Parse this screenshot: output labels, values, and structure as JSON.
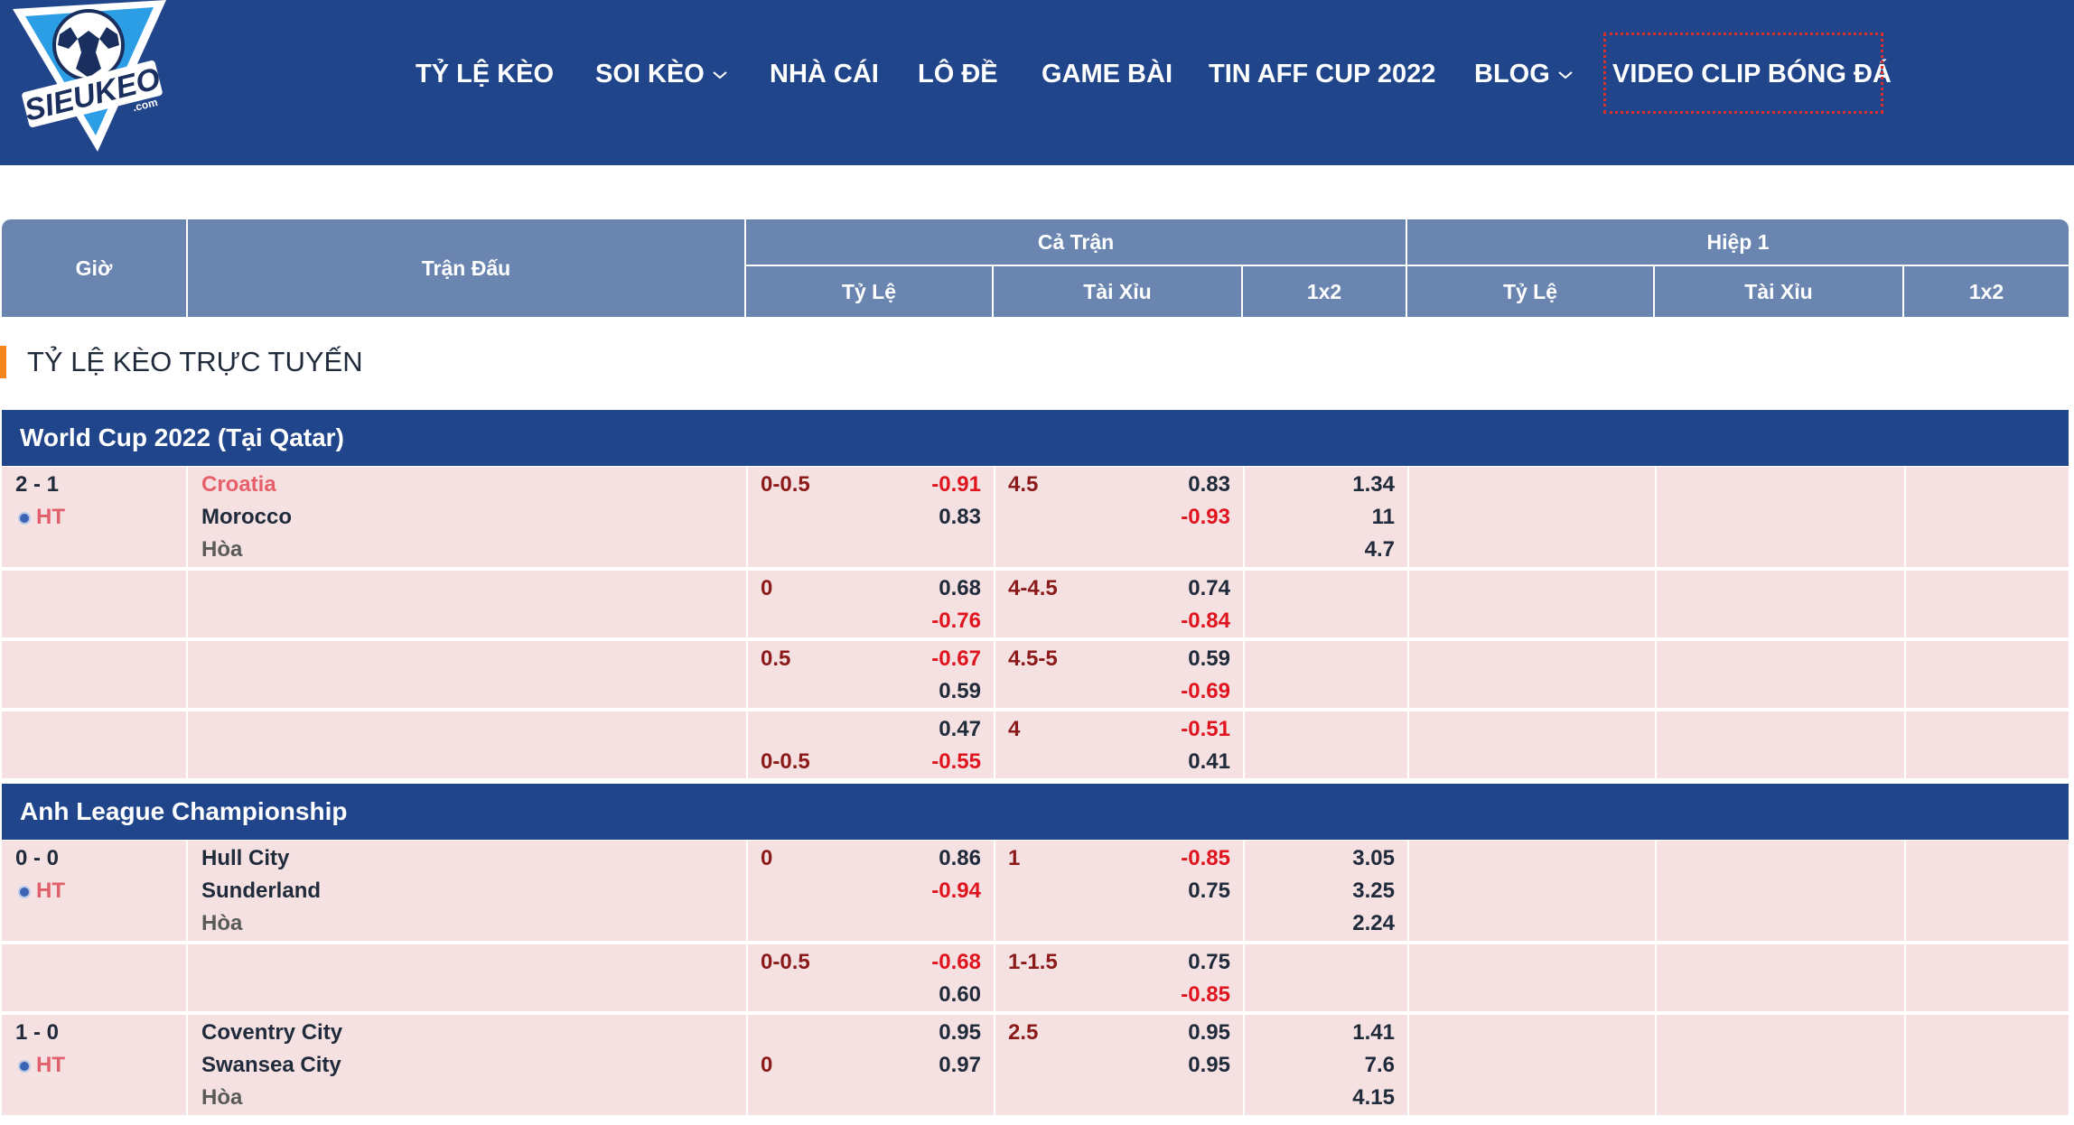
{
  "header": {
    "logo_text": "SIEUKEO",
    "logo_sub": ".com",
    "nav": [
      {
        "label": "TỶ LỆ KÈO",
        "dropdown": false
      },
      {
        "label": "SOI KÈO",
        "dropdown": true
      },
      {
        "label": "NHÀ CÁI",
        "dropdown": false
      },
      {
        "label": "LÔ ĐỀ",
        "dropdown": false
      },
      {
        "label": "GAME BÀI",
        "dropdown": false
      },
      {
        "label": "TIN AFF CUP 2022",
        "dropdown": false
      },
      {
        "label": "BLOG",
        "dropdown": true
      },
      {
        "label": "VIDEO CLIP BÓNG ĐÁ",
        "dropdown": false
      }
    ]
  },
  "table_header": {
    "time": "Giờ",
    "match": "Trận Đấu",
    "full_match": "Cả Trận",
    "half1": "Hiệp 1",
    "handicap": "Tỷ Lệ",
    "over_under": "Tài Xỉu",
    "x12": "1x2"
  },
  "section_title": "TỶ LỆ KÈO TRỰC TUYẾN",
  "leagues": [
    {
      "name": "World Cup 2022 (Tại Qatar)",
      "matches": [
        {
          "score": "2 - 1",
          "status": "HT",
          "home": "Croatia",
          "away": "Morocco",
          "draw": "Hòa",
          "lines": [
            {
              "hdp_top": "0-0.5",
              "hdp_bottom": "",
              "hdp_odds_top": "-0.91",
              "hdp_odds_bottom": "0.83",
              "ou_line": "4.5",
              "ou_odds_top": "0.83",
              "ou_odds_bottom": "-0.93",
              "x12": [
                "1.34",
                "11",
                "4.7"
              ]
            },
            {
              "hdp_top": "0",
              "hdp_bottom": "",
              "hdp_odds_top": "0.68",
              "hdp_odds_bottom": "-0.76",
              "ou_line": "4-4.5",
              "ou_odds_top": "0.74",
              "ou_odds_bottom": "-0.84",
              "x12": []
            },
            {
              "hdp_top": "0.5",
              "hdp_bottom": "",
              "hdp_odds_top": "-0.67",
              "hdp_odds_bottom": "0.59",
              "ou_line": "4.5-5",
              "ou_odds_top": "0.59",
              "ou_odds_bottom": "-0.69",
              "x12": []
            },
            {
              "hdp_top": "",
              "hdp_bottom": "0-0.5",
              "hdp_odds_top": "0.47",
              "hdp_odds_bottom": "-0.55",
              "ou_line": "4",
              "ou_odds_top": "-0.51",
              "ou_odds_bottom": "0.41",
              "x12": []
            }
          ]
        }
      ]
    },
    {
      "name": "Anh League Championship",
      "matches": [
        {
          "score": "0 - 0",
          "status": "HT",
          "home": "Hull City",
          "away": "Sunderland",
          "draw": "Hòa",
          "lines": [
            {
              "hdp_top": "0",
              "hdp_bottom": "",
              "hdp_odds_top": "0.86",
              "hdp_odds_bottom": "-0.94",
              "ou_line": "1",
              "ou_odds_top": "-0.85",
              "ou_odds_bottom": "0.75",
              "x12": [
                "3.05",
                "3.25",
                "2.24"
              ]
            },
            {
              "hdp_top": "0-0.5",
              "hdp_bottom": "",
              "hdp_odds_top": "-0.68",
              "hdp_odds_bottom": "0.60",
              "ou_line": "1-1.5",
              "ou_odds_top": "0.75",
              "ou_odds_bottom": "-0.85",
              "x12": []
            }
          ]
        },
        {
          "score": "1 - 0",
          "status": "HT",
          "home": "Coventry City",
          "away": "Swansea City",
          "draw": "Hòa",
          "lines": [
            {
              "hdp_top": "",
              "hdp_bottom": "0",
              "hdp_odds_top": "0.95",
              "hdp_odds_bottom": "0.97",
              "ou_line": "2.5",
              "ou_odds_top": "0.95",
              "ou_odds_bottom": "0.95",
              "x12": [
                "1.41",
                "7.6",
                "4.15"
              ]
            }
          ]
        }
      ]
    }
  ],
  "colors": {
    "header_bg": "#20458b",
    "table_header_bg": "#6a86b0",
    "row_bg": "#f6e1e2",
    "negative_odds": "#e0141e",
    "line_value": "#8b1a1a",
    "accent_orange": "#f7851f"
  }
}
